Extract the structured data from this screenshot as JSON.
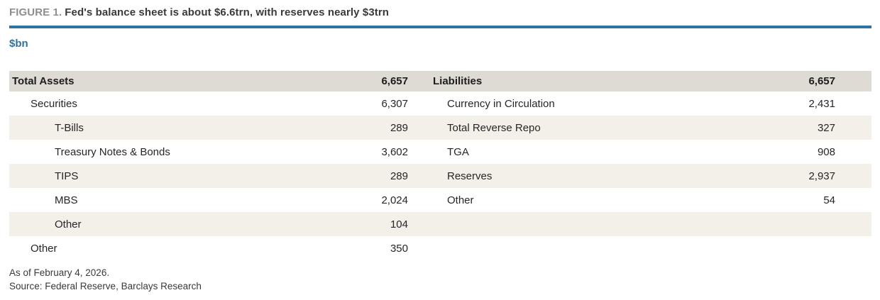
{
  "figure": {
    "label": "FIGURE 1.",
    "title": "Fed's balance sheet is about $6.6trn, with reserves nearly $3trn",
    "unit": "$bn"
  },
  "colors": {
    "accent_blue": "#2d72a2",
    "header_row_bg": "#dedad4",
    "stripe_bg": "#f3efe9",
    "figure_label_gray": "#8e8e8e",
    "text_dark": "#262626"
  },
  "table": {
    "header": {
      "assets_label": "Total Assets",
      "assets_value": "6,657",
      "liabilities_label": "Liabilities",
      "liabilities_value": "6,657"
    },
    "rows": [
      {
        "asset_label": "Securities",
        "asset_value": "6,307",
        "liability_label": "Currency in Circulation",
        "liability_value": "2,431"
      },
      {
        "asset_label": "T-Bills",
        "asset_value": "289",
        "liability_label": "Total Reverse Repo",
        "liability_value": "327"
      },
      {
        "asset_label": "Treasury Notes & Bonds",
        "asset_value": "3,602",
        "liability_label": "TGA",
        "liability_value": "908"
      },
      {
        "asset_label": "TIPS",
        "asset_value": "289",
        "liability_label": "Reserves",
        "liability_value": "2,937"
      },
      {
        "asset_label": "MBS",
        "asset_value": "2,024",
        "liability_label": "Other",
        "liability_value": "54"
      },
      {
        "asset_label": "Other",
        "asset_value": "104",
        "liability_label": "",
        "liability_value": ""
      },
      {
        "asset_label": "Other",
        "asset_value": "350",
        "liability_label": "",
        "liability_value": ""
      }
    ]
  },
  "footnotes": {
    "as_of": "As of February 4, 2026.",
    "source": "Source: Federal Reserve, Barclays Research"
  },
  "chart_data": {
    "type": "table",
    "title": "FIGURE 1. Fed's balance sheet is about $6.6trn, with reserves nearly $3trn",
    "unit": "$bn",
    "as_of": "February 4, 2026",
    "source": "Federal Reserve, Barclays Research",
    "assets": {
      "label": "Total Assets",
      "total": 6657,
      "items": [
        {
          "label": "Securities",
          "value": 6307,
          "children": [
            {
              "label": "T-Bills",
              "value": 289
            },
            {
              "label": "Treasury Notes & Bonds",
              "value": 3602
            },
            {
              "label": "TIPS",
              "value": 289
            },
            {
              "label": "MBS",
              "value": 2024
            },
            {
              "label": "Other",
              "value": 104
            }
          ]
        },
        {
          "label": "Other",
          "value": 350
        }
      ]
    },
    "liabilities": {
      "label": "Liabilities",
      "total": 6657,
      "items": [
        {
          "label": "Currency in Circulation",
          "value": 2431
        },
        {
          "label": "Total Reverse Repo",
          "value": 327
        },
        {
          "label": "TGA",
          "value": 908
        },
        {
          "label": "Reserves",
          "value": 2937
        },
        {
          "label": "Other",
          "value": 54
        }
      ]
    }
  }
}
